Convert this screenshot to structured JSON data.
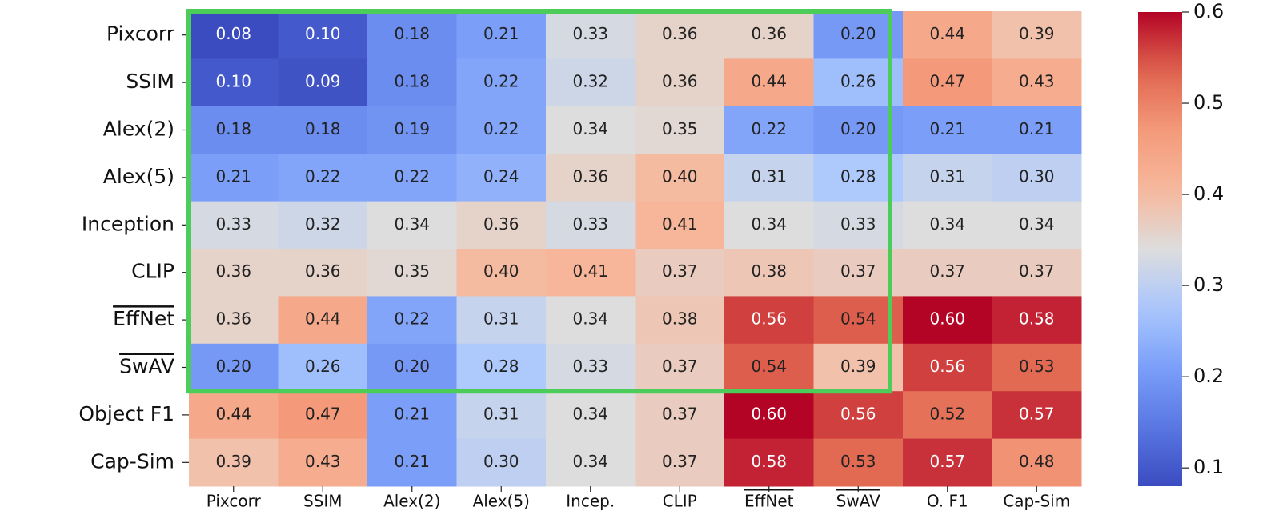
{
  "chart_data": {
    "type": "heatmap",
    "rows": [
      "Pixcorr",
      "SSIM",
      "Alex(2)",
      "Alex(5)",
      "Inception",
      "CLIP",
      "EffNet",
      "SwAV",
      "Object F1",
      "Cap-Sim"
    ],
    "columns": [
      "Pixcorr",
      "SSIM",
      "Alex(2)",
      "Alex(5)",
      "Incep.",
      "CLIP",
      "EffNet",
      "SwAV",
      "O. F1",
      "Cap-Sim"
    ],
    "values": [
      [
        0.08,
        0.1,
        0.18,
        0.21,
        0.33,
        0.36,
        0.36,
        0.2,
        0.44,
        0.39
      ],
      [
        0.1,
        0.09,
        0.18,
        0.22,
        0.32,
        0.36,
        0.44,
        0.26,
        0.47,
        0.43
      ],
      [
        0.18,
        0.18,
        0.19,
        0.22,
        0.34,
        0.35,
        0.22,
        0.2,
        0.21,
        0.21
      ],
      [
        0.21,
        0.22,
        0.22,
        0.24,
        0.36,
        0.4,
        0.31,
        0.28,
        0.31,
        0.3
      ],
      [
        0.33,
        0.32,
        0.34,
        0.36,
        0.33,
        0.41,
        0.34,
        0.33,
        0.34,
        0.34
      ],
      [
        0.36,
        0.36,
        0.35,
        0.4,
        0.41,
        0.37,
        0.38,
        0.37,
        0.37,
        0.37
      ],
      [
        0.36,
        0.44,
        0.22,
        0.31,
        0.34,
        0.38,
        0.56,
        0.54,
        0.6,
        0.58
      ],
      [
        0.2,
        0.26,
        0.2,
        0.28,
        0.33,
        0.37,
        0.54,
        0.39,
        0.56,
        0.53
      ],
      [
        0.44,
        0.47,
        0.21,
        0.31,
        0.34,
        0.37,
        0.6,
        0.56,
        0.52,
        0.57
      ],
      [
        0.39,
        0.43,
        0.21,
        0.3,
        0.34,
        0.37,
        0.58,
        0.53,
        0.57,
        0.48
      ]
    ],
    "value_labels": [
      [
        "0.08",
        "0.10",
        "0.18",
        "0.21",
        "0.33",
        "0.36",
        "0.36",
        "0.20",
        "0.44",
        "0.39"
      ],
      [
        "0.10",
        "0.09",
        "0.18",
        "0.22",
        "0.32",
        "0.36",
        "0.44",
        "0.26",
        "0.47",
        "0.43"
      ],
      [
        "0.18",
        "0.18",
        "0.19",
        "0.22",
        "0.34",
        "0.35",
        "0.22",
        "0.20",
        "0.21",
        "0.21"
      ],
      [
        "0.21",
        "0.22",
        "0.22",
        "0.24",
        "0.36",
        "0.40",
        "0.31",
        "0.28",
        "0.31",
        "0.30"
      ],
      [
        "0.33",
        "0.32",
        "0.34",
        "0.36",
        "0.33",
        "0.41",
        "0.34",
        "0.33",
        "0.34",
        "0.34"
      ],
      [
        "0.36",
        "0.36",
        "0.35",
        "0.40",
        "0.41",
        "0.37",
        "0.38",
        "0.37",
        "0.37",
        "0.37"
      ],
      [
        "0.36",
        "0.44",
        "0.22",
        "0.31",
        "0.34",
        "0.38",
        "0.56",
        "0.54",
        "0.60",
        "0.58"
      ],
      [
        "0.20",
        "0.26",
        "0.20",
        "0.28",
        "0.33",
        "0.37",
        "0.54",
        "0.39",
        "0.56",
        "0.53"
      ],
      [
        "0.44",
        "0.47",
        "0.21",
        "0.31",
        "0.34",
        "0.37",
        "0.60",
        "0.56",
        "0.52",
        "0.57"
      ],
      [
        "0.39",
        "0.43",
        "0.21",
        "0.30",
        "0.34",
        "0.37",
        "0.58",
        "0.53",
        "0.57",
        "0.48"
      ]
    ],
    "colormap": "coolwarm",
    "clim": [
      0.08,
      0.6
    ],
    "cticks": [
      0.1,
      0.2,
      0.3,
      0.4,
      0.5,
      0.6
    ]
  }
}
